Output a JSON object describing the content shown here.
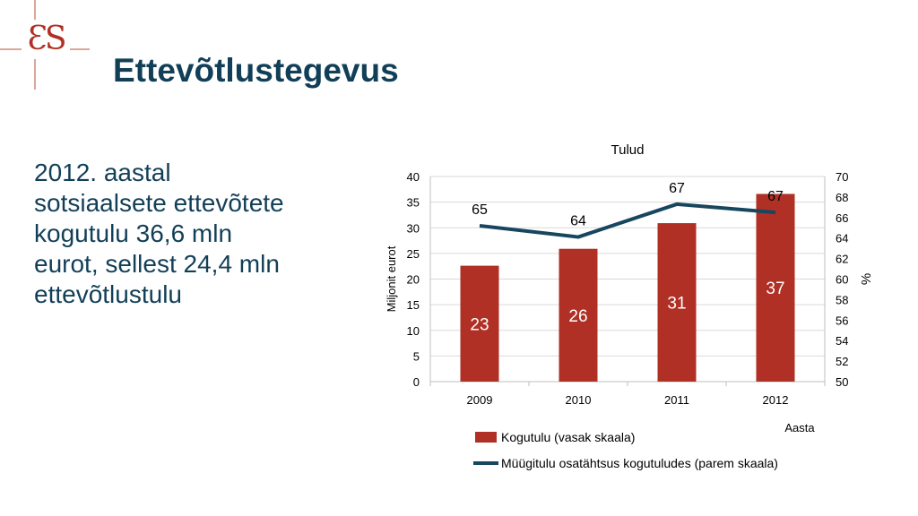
{
  "logo": {
    "text": "ƐS",
    "color": "#b03025",
    "line_color": "#d9a79d"
  },
  "page": {
    "title": "Ettevõtlustegevus"
  },
  "body": {
    "lines": [
      "2012. aastal",
      "sotsiaalsete ettevõtete",
      "kogutulu 36,6 mln",
      "eurot, sellest 24,4 mln",
      "ettevõtlustulu"
    ]
  },
  "colors": {
    "title": "#123f58",
    "bar": "#b03025",
    "line": "#17465e",
    "grid": "#d9d9d9"
  },
  "chart_data": {
    "type": "bar",
    "title": "Tulud",
    "xlabel": "Aasta",
    "ylabel": "Miljonit eurot",
    "y2label": "%",
    "categories": [
      "2009",
      "2010",
      "2011",
      "2012"
    ],
    "ylim": [
      0,
      40
    ],
    "y_ticks": [
      0,
      5,
      10,
      15,
      20,
      25,
      30,
      35,
      40
    ],
    "y2lim": [
      50,
      70
    ],
    "y2_ticks": [
      50,
      52,
      54,
      56,
      58,
      60,
      62,
      64,
      66,
      68,
      70
    ],
    "grid": true,
    "legend_position": "bottom",
    "series": [
      {
        "name": "Kogutulu (vasak skaala)",
        "type": "bar",
        "axis": "left",
        "values": [
          22.6,
          25.9,
          30.9,
          36.6
        ],
        "labels": [
          "23",
          "26",
          "31",
          "37"
        ]
      },
      {
        "name": "Müügitulu osatähtsus kogutuludes (parem skaala)",
        "type": "line",
        "axis": "right",
        "values": [
          65.2,
          64.1,
          67.3,
          66.5
        ],
        "labels": [
          "65",
          "64",
          "67",
          "67"
        ]
      }
    ]
  }
}
